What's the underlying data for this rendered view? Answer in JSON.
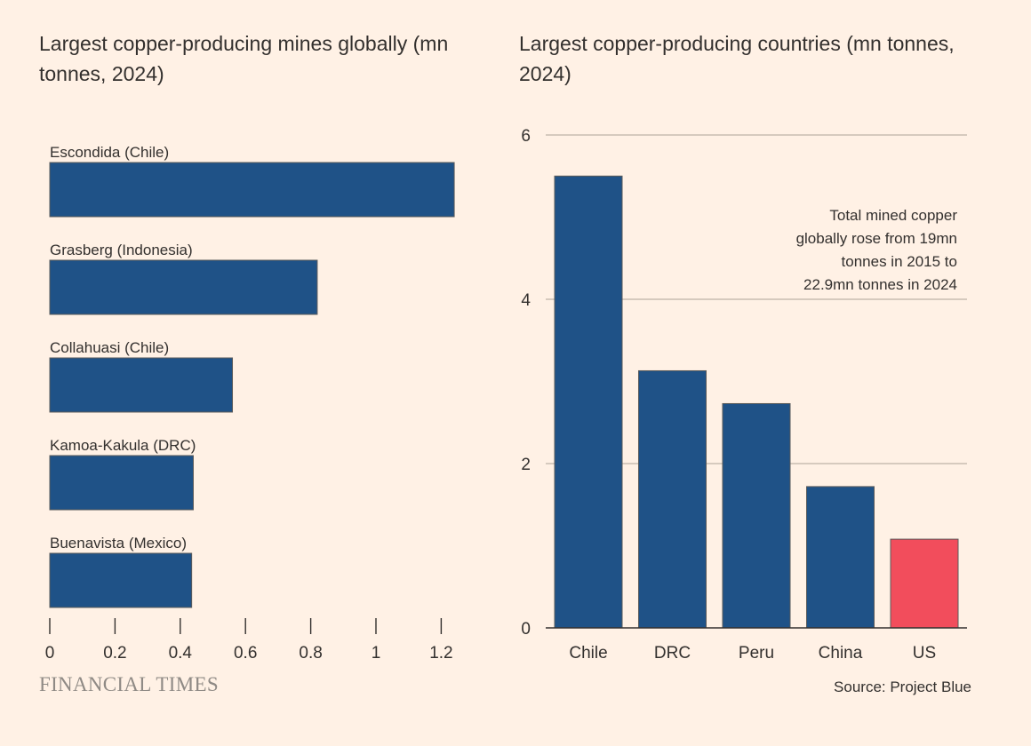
{
  "chart_data": [
    {
      "type": "bar",
      "orientation": "horizontal",
      "title": "Largest copper-producing mines globally (mn tonnes, 2024)",
      "categories": [
        "Escondida (Chile)",
        "Grasberg (Indonesia)",
        "Collahuasi (Chile)",
        "Kamoa-Kakula (DRC)",
        "Buenavista (Mexico)"
      ],
      "values": [
        1.24,
        0.82,
        0.56,
        0.44,
        0.435
      ],
      "xlim": [
        0,
        1.3
      ],
      "xticks": [
        0,
        0.2,
        0.4,
        0.6,
        0.8,
        1,
        1.2
      ],
      "xtick_labels": [
        "0",
        "0.2",
        "0.4",
        "0.6",
        "0.8",
        "1",
        "1.2"
      ],
      "grid": false,
      "colors": [
        "#1f5287",
        "#1f5287",
        "#1f5287",
        "#1f5287",
        "#1f5287"
      ]
    },
    {
      "type": "bar",
      "orientation": "vertical",
      "title": "Largest copper-producing countries (mn tonnes, 2024)",
      "categories": [
        "Chile",
        "DRC",
        "Peru",
        "China",
        "US"
      ],
      "values": [
        5.5,
        3.13,
        2.73,
        1.72,
        1.08
      ],
      "ylim": [
        0,
        6
      ],
      "yticks": [
        0,
        2,
        4,
        6
      ],
      "ytick_labels": [
        "0",
        "2",
        "4",
        "6"
      ],
      "grid": true,
      "colors": [
        "#1f5287",
        "#1f5287",
        "#1f5287",
        "#1f5287",
        "#f24d5c"
      ],
      "annotation": [
        "Total mined copper",
        "globally rose from 19mn",
        "tonnes in 2015 to",
        "22.9mn tonnes in 2024"
      ]
    }
  ],
  "footer": {
    "logo": "FINANCIAL TIMES",
    "source": "Source: Project Blue"
  },
  "colors": {
    "background": "#fff1e5",
    "bar": "#1f5287",
    "highlight": "#f24d5c",
    "gridline": "#c9bdb2",
    "text": "#33302e"
  }
}
